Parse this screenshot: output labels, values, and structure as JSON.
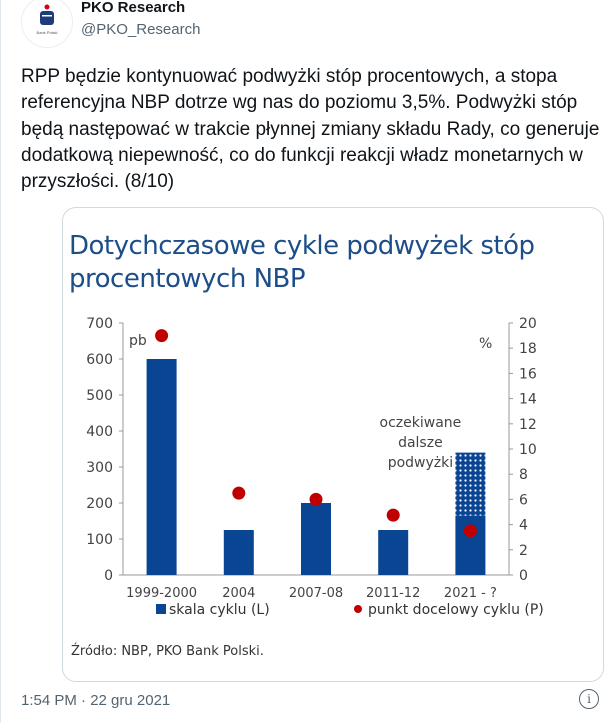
{
  "author": {
    "name": "PKO Research",
    "handle": "@PKO_Research",
    "avatar_text": "Bank Polski"
  },
  "tweet_text": "RPP będzie kontynuować podwyżki stóp procentowych, a stopa referencyjna NBP dotrze wg nas do poziomu 3,5%. Podwyżki stóp będą następować w trakcie płynnej zmiany składu Rady, co generuje dodatkową niepewność, co do funkcji reakcji władz monetarnych w przyszłości. (8/10)",
  "timestamp": "1:54 PM · 22 gru 2021",
  "colors": {
    "bar": "#0a4594",
    "dot": "#c00000",
    "title": "#1d4e89"
  },
  "chart_data": {
    "type": "bar",
    "title": "Dotychczasowe cykle podwyżek stóp procentowych NBP",
    "categories": [
      "1999-2000",
      "2004",
      "2007-08",
      "2011-12",
      "2021 - ?"
    ],
    "series": [
      {
        "name": "skala cyklu (L)",
        "axis": "left",
        "values": [
          600,
          125,
          200,
          125,
          165
        ]
      },
      {
        "name": "oczekiwane dalsze podwyżki",
        "axis": "left",
        "stacked_on": "skala cyklu (L)",
        "values": [
          0,
          0,
          0,
          0,
          175
        ]
      },
      {
        "name": "punkt docelowy cyklu (P)",
        "axis": "right",
        "type": "scatter",
        "values": [
          19,
          6.5,
          6,
          4.75,
          3.5
        ]
      }
    ],
    "left_axis": {
      "label": "pb",
      "ylim": [
        0,
        700
      ],
      "ticks": [
        0,
        100,
        200,
        300,
        400,
        500,
        600,
        700
      ]
    },
    "right_axis": {
      "label": "%",
      "ylim": [
        0,
        20
      ],
      "ticks": [
        0,
        2,
        4,
        6,
        8,
        10,
        12,
        14,
        16,
        18,
        20
      ]
    },
    "annotation": [
      "oczekiwane",
      "dalsze",
      "podwyżki"
    ],
    "legend": [
      "skala cyklu (L)",
      "punkt docelowy cyklu (P)"
    ],
    "source": "Źródło: NBP, PKO Bank Polski."
  }
}
